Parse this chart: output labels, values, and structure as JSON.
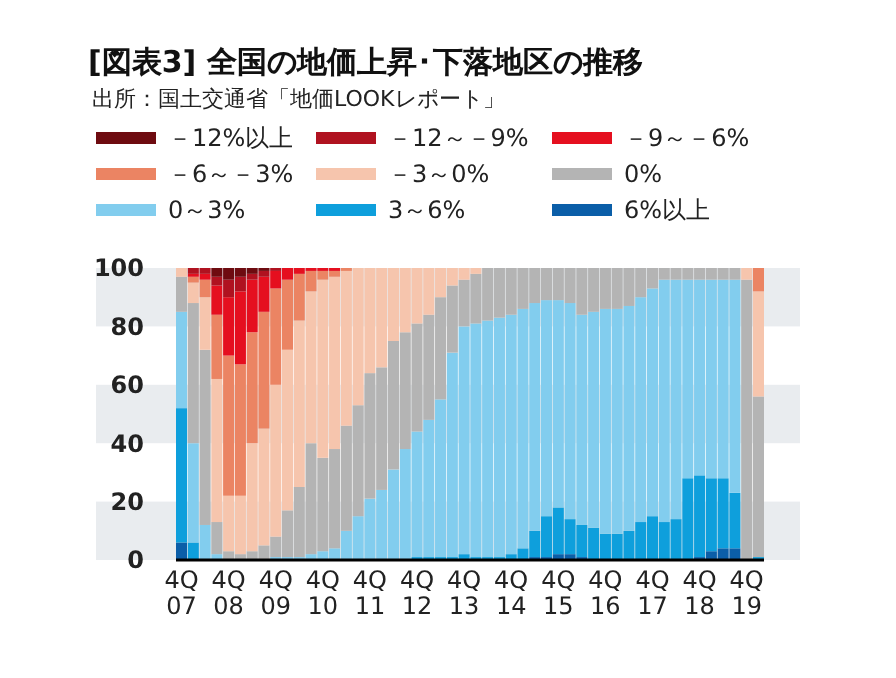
{
  "chart_data": {
    "type": "bar",
    "stacked": true,
    "title": "[図表3] 全国の地価上昇･下落地区の推移",
    "subtitle": "出所：国土交通省「地価LOOKレポート」",
    "categories": [
      "4Q\n07",
      null,
      null,
      null,
      "4Q\n08",
      null,
      null,
      null,
      "4Q\n09",
      null,
      null,
      null,
      "4Q\n10",
      null,
      null,
      null,
      "4Q\n11",
      null,
      null,
      null,
      "4Q\n12",
      null,
      null,
      null,
      "4Q\n13",
      null,
      null,
      null,
      "4Q\n14",
      null,
      null,
      null,
      "4Q\n15",
      null,
      null,
      null,
      "4Q\n16",
      null,
      null,
      null,
      "4Q\n17",
      null,
      null,
      null,
      "4Q\n18",
      null,
      null,
      null,
      "4Q\n19",
      null
    ],
    "ylim": [
      0,
      100
    ],
    "yticks": [
      0,
      20,
      40,
      60,
      80,
      100
    ],
    "bands": [
      {
        "axis": "y",
        "from": 0,
        "to": 20,
        "color": "#e9ecef"
      },
      {
        "axis": "y",
        "from": 40,
        "to": 60,
        "color": "#e9ecef"
      },
      {
        "axis": "y",
        "from": 80,
        "to": 100,
        "color": "#e9ecef"
      }
    ],
    "legend": "top",
    "series": [
      {
        "name": "6%以上",
        "color": "#0b5ea8",
        "values": [
          6,
          0,
          0,
          0,
          0,
          0,
          0,
          0,
          0,
          0,
          0,
          0,
          0,
          0,
          0,
          0,
          0,
          0,
          0,
          0,
          0,
          0,
          0,
          0,
          0,
          0,
          0,
          0,
          0,
          0,
          1,
          1,
          2,
          2,
          1,
          0,
          0,
          0,
          0,
          0,
          0,
          0,
          0,
          0,
          1,
          3,
          4,
          4,
          0,
          0
        ]
      },
      {
        "name": "3～6%",
        "color": "#0e9fdc",
        "values": [
          46,
          6,
          0,
          0,
          0,
          0,
          0,
          0,
          0,
          0,
          0,
          0,
          0,
          0,
          0,
          0,
          0,
          0,
          0,
          0,
          1,
          1,
          1,
          1,
          2,
          1,
          1,
          1,
          2,
          4,
          9,
          14,
          16,
          12,
          11,
          11,
          9,
          9,
          10,
          13,
          15,
          13,
          14,
          28,
          28,
          25,
          24,
          19,
          0,
          1
        ]
      },
      {
        "name": "0～3%",
        "color": "#82cdee",
        "values": [
          33,
          34,
          12,
          2,
          0,
          0,
          0,
          0,
          1,
          1,
          1,
          2,
          3,
          4,
          10,
          15,
          21,
          24,
          31,
          38,
          43,
          47,
          54,
          70,
          78,
          80,
          81,
          82,
          82,
          82,
          78,
          74,
          71,
          74,
          72,
          74,
          77,
          77,
          77,
          77,
          78,
          83,
          82,
          68,
          67,
          68,
          68,
          73,
          0,
          0
        ]
      },
      {
        "name": "0%",
        "color": "#b4b4b4",
        "values": [
          12,
          48,
          60,
          11,
          3,
          2,
          3,
          5,
          7,
          16,
          24,
          38,
          32,
          34,
          36,
          38,
          43,
          42,
          44,
          40,
          37,
          36,
          35,
          23,
          16,
          17,
          18,
          17,
          16,
          14,
          12,
          11,
          11,
          12,
          16,
          15,
          14,
          14,
          13,
          10,
          7,
          4,
          4,
          4,
          4,
          4,
          4,
          4,
          96,
          55
        ]
      },
      {
        "name": "－3～0%",
        "color": "#f6c5ad",
        "values": [
          3,
          7,
          18,
          49,
          19,
          20,
          37,
          40,
          52,
          55,
          57,
          52,
          61,
          59,
          53,
          47,
          36,
          34,
          25,
          22,
          19,
          16,
          10,
          6,
          4,
          2,
          0,
          0,
          0,
          0,
          0,
          0,
          0,
          0,
          0,
          0,
          0,
          0,
          0,
          0,
          0,
          0,
          0,
          0,
          0,
          0,
          0,
          0,
          4,
          36
        ]
      },
      {
        "name": "－6～－3%",
        "color": "#eb8463",
        "values": [
          0,
          2,
          6,
          22,
          48,
          45,
          38,
          40,
          33,
          24,
          16,
          7,
          3,
          2,
          1,
          0,
          0,
          0,
          0,
          0,
          0,
          0,
          0,
          0,
          0,
          0,
          0,
          0,
          0,
          0,
          0,
          0,
          0,
          0,
          0,
          0,
          0,
          0,
          0,
          0,
          0,
          0,
          0,
          0,
          0,
          0,
          0,
          0,
          0,
          8
        ]
      },
      {
        "name": "－9～－6%",
        "color": "#e50f1f",
        "values": [
          0,
          1,
          2,
          10,
          20,
          25,
          18,
          12,
          6,
          4,
          2,
          1,
          1,
          1,
          0,
          0,
          0,
          0,
          0,
          0,
          0,
          0,
          0,
          0,
          0,
          0,
          0,
          0,
          0,
          0,
          0,
          0,
          0,
          0,
          0,
          0,
          0,
          0,
          0,
          0,
          0,
          0,
          0,
          0,
          0,
          0,
          0,
          0,
          0,
          0
        ]
      },
      {
        "name": "－12～－9%",
        "color": "#b01220",
        "values": [
          0,
          2,
          2,
          3,
          6,
          5,
          2,
          2,
          1,
          0,
          0,
          0,
          0,
          0,
          0,
          0,
          0,
          0,
          0,
          0,
          0,
          0,
          0,
          0,
          0,
          0,
          0,
          0,
          0,
          0,
          0,
          0,
          0,
          0,
          0,
          0,
          0,
          0,
          0,
          0,
          0,
          0,
          0,
          0,
          0,
          0,
          0,
          0,
          0,
          0
        ]
      },
      {
        "name": "－12%以上",
        "color": "#6e0b10",
        "values": [
          0,
          0,
          0,
          3,
          4,
          3,
          2,
          1,
          0,
          0,
          0,
          0,
          0,
          0,
          0,
          0,
          0,
          0,
          0,
          0,
          0,
          0,
          0,
          0,
          0,
          0,
          0,
          0,
          0,
          0,
          0,
          0,
          0,
          0,
          0,
          0,
          0,
          0,
          0,
          0,
          0,
          0,
          0,
          0,
          0,
          0,
          0,
          0,
          0,
          0
        ]
      }
    ]
  }
}
